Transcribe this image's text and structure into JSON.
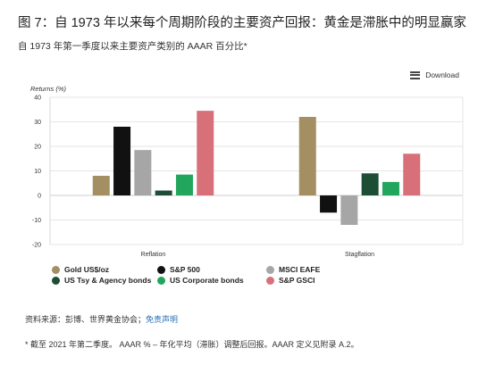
{
  "header": {
    "title": "图 7：自 1973 年以来每个周期阶段的主要资产回报：黄金是滞胀中的明显赢家",
    "subtitle": "自 1973 年第一季度以来主要资产类别的 AAAR 百分比*"
  },
  "toolbar": {
    "download_label": "Download",
    "download_icon": "menu-icon"
  },
  "chart_data": {
    "type": "bar",
    "ylabel": "Returns (%)",
    "ylim": [
      -20,
      40
    ],
    "yticks": [
      40,
      30,
      20,
      10,
      0,
      -10,
      -20
    ],
    "grid": true,
    "categories": [
      "Reflation",
      "Stagflation"
    ],
    "series": [
      {
        "name": "Gold US$/oz",
        "color": "#a38f62",
        "values": [
          8,
          32
        ]
      },
      {
        "name": "S&P 500",
        "color": "#111111",
        "values": [
          28,
          -7
        ]
      },
      {
        "name": "MSCI EAFE",
        "color": "#a6a6a6",
        "values": [
          18.5,
          -12
        ]
      },
      {
        "name": "US Tsy & Agency bonds",
        "color": "#1d4d35",
        "values": [
          2,
          9
        ]
      },
      {
        "name": "US Corporate bonds",
        "color": "#22a65e",
        "values": [
          8.5,
          5.5
        ]
      },
      {
        "name": "S&P GSCI",
        "color": "#d77079",
        "values": [
          34.5,
          17
        ]
      }
    ],
    "legend_position": "bottom"
  },
  "footer": {
    "source_prefix": "资料来源：彭博、世界黄金协会；",
    "source_link": "免责声明",
    "footnote": "* 截至 2021 年第二季度。 AAAR % – 年化平均（滞胀）调整后回报。AAAR 定义见附录 A.2。"
  }
}
